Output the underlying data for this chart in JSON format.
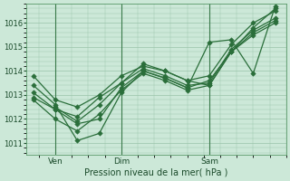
{
  "bg_color": "#cce8d8",
  "grid_color": "#99c4aa",
  "line_color": "#2a6e3a",
  "marker_color": "#2a6e3a",
  "xlabel": "Pression niveau de la mer( hPa )",
  "ylim": [
    1010.5,
    1016.8
  ],
  "yticks": [
    1011,
    1012,
    1013,
    1014,
    1015,
    1016
  ],
  "xtick_labels": [
    "Ven",
    "Dim",
    "Sam"
  ],
  "xtick_positions": [
    1,
    4,
    8
  ],
  "vlines": [
    1,
    4,
    8
  ],
  "series": [
    {
      "x": [
        0,
        1,
        2,
        3,
        4,
        5,
        6,
        7,
        8,
        9,
        10,
        11
      ],
      "y": [
        1013.8,
        1012.8,
        1012.5,
        1013.0,
        1013.8,
        1014.2,
        1014.0,
        1013.6,
        1013.8,
        1015.1,
        1016.0,
        1016.5
      ]
    },
    {
      "x": [
        0,
        1,
        2,
        3,
        4,
        5,
        6,
        7,
        8,
        9,
        10,
        11
      ],
      "y": [
        1012.9,
        1012.4,
        1012.1,
        1012.9,
        1013.5,
        1014.1,
        1013.8,
        1013.4,
        1013.5,
        1014.9,
        1015.7,
        1016.2
      ]
    },
    {
      "x": [
        0,
        1,
        2,
        3,
        4,
        5,
        6,
        7,
        8,
        9,
        10,
        11
      ],
      "y": [
        1012.8,
        1012.0,
        1011.5,
        1012.2,
        1013.2,
        1013.9,
        1013.6,
        1013.2,
        1013.4,
        1014.8,
        1015.6,
        1016.1
      ]
    },
    {
      "x": [
        1,
        2,
        3,
        4,
        5,
        6,
        7,
        8,
        9,
        10,
        11
      ],
      "y": [
        1012.5,
        1011.9,
        1012.6,
        1013.5,
        1014.3,
        1014.0,
        1013.6,
        1013.4,
        1014.8,
        1015.5,
        1016.0
      ]
    },
    {
      "x": [
        0,
        1,
        2,
        3,
        4,
        5,
        6,
        7,
        8,
        9,
        10,
        11
      ],
      "y": [
        1013.4,
        1012.6,
        1011.1,
        1011.4,
        1013.1,
        1014.0,
        1013.7,
        1013.3,
        1015.2,
        1015.3,
        1013.9,
        1016.7
      ]
    },
    {
      "x": [
        0,
        1,
        2,
        3,
        4,
        5,
        6,
        7,
        8,
        9,
        10,
        11
      ],
      "y": [
        1013.1,
        1012.4,
        1011.8,
        1012.0,
        1013.3,
        1014.0,
        1013.7,
        1013.3,
        1013.6,
        1014.8,
        1015.8,
        1016.6
      ]
    }
  ]
}
